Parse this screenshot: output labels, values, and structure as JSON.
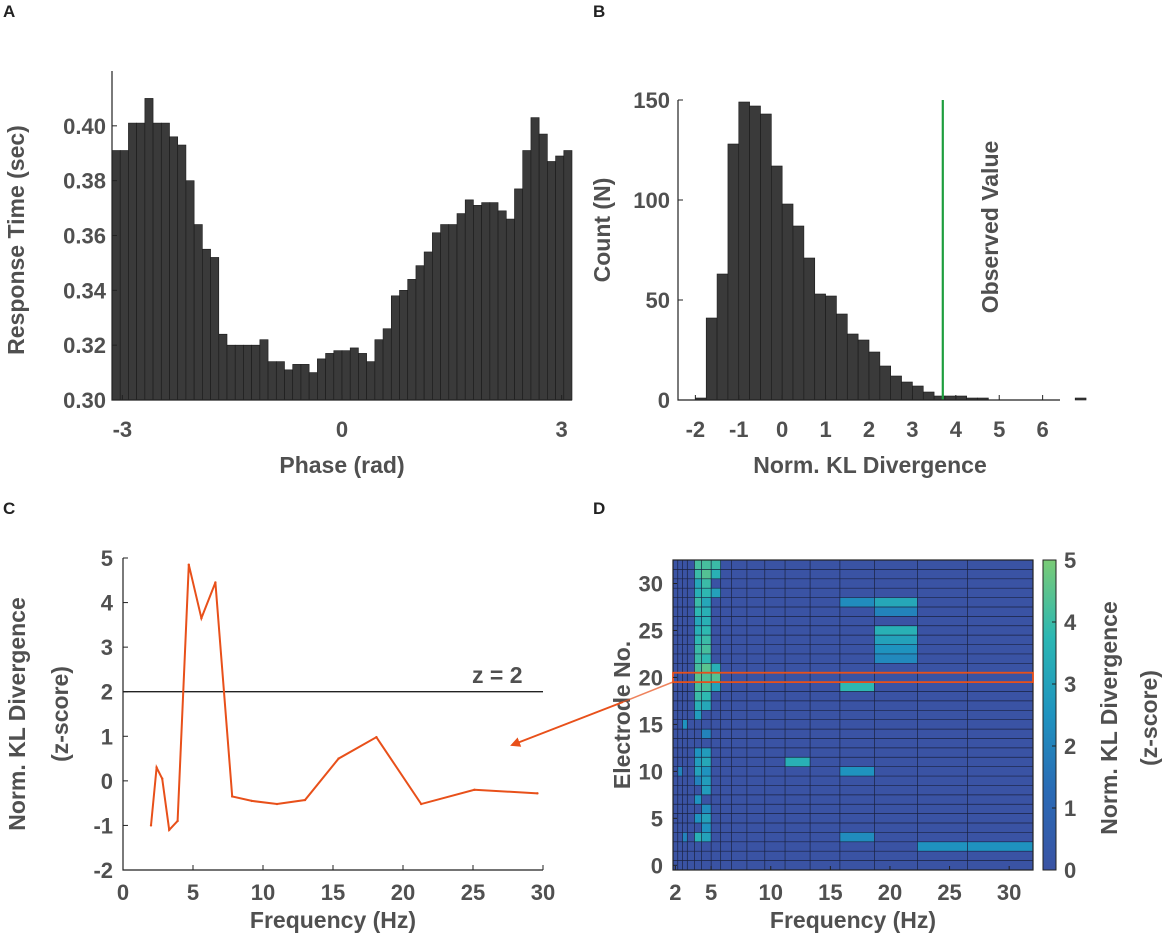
{
  "colors": {
    "bar_fill": "#3a3a3a",
    "bar_edge": "#1a1a1a",
    "observed_line": "#1e9e3e",
    "orange": "#e8501a",
    "threshold_line": "#222222",
    "text": "#505050",
    "heatmap_low": "#3a53a4",
    "heatmap_mid": "#2bb7b3",
    "heatmap_high": "#7acb76"
  },
  "chart_data": [
    {
      "id": "A",
      "panel_label": "A",
      "type": "bar",
      "xlabel": "Phase (rad)",
      "ylabel": "Response Time (sec)",
      "xlim": [
        -3.1416,
        3.1416
      ],
      "ylim": [
        0.3,
        0.42
      ],
      "xticks": [
        -3,
        0,
        3
      ],
      "xtick_labels": [
        "-3",
        "0",
        "3"
      ],
      "yticks": [
        0.3,
        0.32,
        0.34,
        0.36,
        0.38,
        0.4
      ],
      "ytick_labels": [
        "0.30",
        "0.32",
        "0.34",
        "0.36",
        "0.38",
        "0.40"
      ],
      "values": [
        0.391,
        0.391,
        0.401,
        0.401,
        0.41,
        0.401,
        0.401,
        0.396,
        0.393,
        0.38,
        0.364,
        0.355,
        0.352,
        0.324,
        0.32,
        0.32,
        0.32,
        0.32,
        0.322,
        0.314,
        0.314,
        0.311,
        0.313,
        0.313,
        0.31,
        0.315,
        0.317,
        0.318,
        0.318,
        0.319,
        0.317,
        0.314,
        0.322,
        0.326,
        0.338,
        0.34,
        0.344,
        0.349,
        0.354,
        0.361,
        0.364,
        0.364,
        0.368,
        0.373,
        0.371,
        0.372,
        0.372,
        0.369,
        0.366,
        0.377,
        0.391,
        0.403,
        0.397,
        0.387,
        0.389,
        0.391
      ]
    },
    {
      "id": "B",
      "panel_label": "B",
      "type": "bar",
      "xlabel": "Norm. KL Divergence",
      "ylabel": "Count (N)",
      "xlim": [
        -2.4,
        6.4
      ],
      "ylim": [
        0,
        150
      ],
      "xticks": [
        -2,
        -1,
        0,
        1,
        2,
        3,
        4,
        5,
        6
      ],
      "xtick_labels": [
        "-2",
        "-1",
        "0",
        "1",
        "2",
        "3",
        "4",
        "5",
        "6"
      ],
      "yticks": [
        0,
        50,
        100,
        150
      ],
      "ytick_labels": [
        "0",
        "50",
        "100",
        "150"
      ],
      "bin_start": -2.0,
      "bin_width": 0.25,
      "values": [
        1,
        41,
        63,
        128,
        149,
        147,
        143,
        117,
        98,
        87,
        71,
        53,
        52,
        43,
        33,
        30,
        24,
        17,
        12,
        9,
        7,
        4,
        2,
        2,
        2,
        1,
        1,
        0,
        0,
        0,
        0,
        0,
        0,
        0,
        0,
        1
      ],
      "observed_value": 3.7,
      "annotation": "Observed Value"
    },
    {
      "id": "C",
      "panel_label": "C",
      "type": "line",
      "xlabel": "Frequency (Hz)",
      "ylabel": "Norm. KL Divergence",
      "ylabel2": "(z-score)",
      "xlim": [
        0,
        30
      ],
      "ylim": [
        -2,
        5
      ],
      "xticks": [
        0,
        5,
        10,
        15,
        20,
        25,
        30
      ],
      "xtick_labels": [
        "0",
        "5",
        "10",
        "15",
        "20",
        "25",
        "30"
      ],
      "yticks": [
        -2,
        -1,
        0,
        1,
        2,
        3,
        4,
        5
      ],
      "ytick_labels": [
        "-2",
        "-1",
        "0",
        "1",
        "2",
        "3",
        "4",
        "5"
      ],
      "x": [
        2,
        2.4,
        2.8,
        3.3,
        3.9,
        4.7,
        5.6,
        6.6,
        7.8,
        9.2,
        11,
        13,
        15.4,
        18.1,
        21.3,
        25.1,
        29.6
      ],
      "y": [
        -1.0,
        0.3,
        0.05,
        -1.1,
        -0.9,
        4.85,
        3.65,
        4.45,
        -0.35,
        -0.45,
        -0.52,
        -0.43,
        0.5,
        0.98,
        -0.52,
        -0.2,
        -0.28
      ],
      "threshold": 2,
      "threshold_label": "z = 2"
    },
    {
      "id": "D",
      "panel_label": "D",
      "type": "heatmap",
      "xlabel": "Frequency (Hz)",
      "ylabel": "Electrode No.",
      "colorbar_label": "Norm. KL Divergence",
      "colorbar_label2": "(z-score)",
      "xticks": [
        2,
        5,
        10,
        15,
        20,
        25,
        30
      ],
      "xtick_labels": [
        "2",
        "5",
        "10",
        "15",
        "20",
        "25",
        "30"
      ],
      "yticks": [
        0,
        5,
        10,
        15,
        20,
        25,
        30
      ],
      "ytick_labels": [
        "0",
        "5",
        "10",
        "15",
        "20",
        "25",
        "30"
      ],
      "colorbar_ticks": [
        0,
        1,
        2,
        3,
        4,
        5
      ],
      "colorbar_tick_labels": [
        "0",
        "1",
        "2",
        "3",
        "4",
        "5"
      ],
      "clim": [
        0,
        5
      ],
      "freq_edges": [
        1.8,
        2.2,
        2.6,
        3.0,
        3.6,
        4.2,
        5.0,
        5.8,
        6.7,
        8.0,
        9.5,
        11.2,
        13.3,
        15.8,
        18.7,
        22.3,
        26.5,
        32.0
      ],
      "n_electrodes": 33,
      "highlight_electrode": 20,
      "hot_cells": [
        {
          "e": 2,
          "f": 15,
          "v": 2.5
        },
        {
          "e": 2,
          "f": 16,
          "v": 2.5
        },
        {
          "e": 3,
          "f": 2,
          "v": 2.0
        },
        {
          "e": 3,
          "f": 4,
          "v": 3.5
        },
        {
          "e": 3,
          "f": 5,
          "v": 3.0
        },
        {
          "e": 3,
          "f": 13,
          "v": 2.3
        },
        {
          "e": 4,
          "f": 5,
          "v": 2.5
        },
        {
          "e": 5,
          "f": 4,
          "v": 2.5
        },
        {
          "e": 5,
          "f": 5,
          "v": 3.0
        },
        {
          "e": 6,
          "f": 5,
          "v": 2.3
        },
        {
          "e": 7,
          "f": 4,
          "v": 2.5
        },
        {
          "e": 8,
          "f": 5,
          "v": 2.8
        },
        {
          "e": 9,
          "f": 4,
          "v": 2.0
        },
        {
          "e": 9,
          "f": 5,
          "v": 2.8
        },
        {
          "e": 10,
          "f": 1,
          "v": 2.0
        },
        {
          "e": 10,
          "f": 4,
          "v": 3.0
        },
        {
          "e": 10,
          "f": 5,
          "v": 2.5
        },
        {
          "e": 10,
          "f": 13,
          "v": 2.5
        },
        {
          "e": 11,
          "f": 4,
          "v": 2.8
        },
        {
          "e": 11,
          "f": 5,
          "v": 3.2
        },
        {
          "e": 11,
          "f": 11,
          "v": 3.5
        },
        {
          "e": 12,
          "f": 4,
          "v": 2.5
        },
        {
          "e": 12,
          "f": 5,
          "v": 2.8
        },
        {
          "e": 14,
          "f": 5,
          "v": 2.0
        },
        {
          "e": 15,
          "f": 2,
          "v": 2.5
        },
        {
          "e": 16,
          "f": 4,
          "v": 2.8
        },
        {
          "e": 17,
          "f": 4,
          "v": 3.5
        },
        {
          "e": 17,
          "f": 5,
          "v": 3.2
        },
        {
          "e": 18,
          "f": 4,
          "v": 4.0
        },
        {
          "e": 18,
          "f": 5,
          "v": 3.8
        },
        {
          "e": 19,
          "f": 4,
          "v": 4.2
        },
        {
          "e": 19,
          "f": 5,
          "v": 4.2
        },
        {
          "e": 19,
          "f": 6,
          "v": 3.0
        },
        {
          "e": 19,
          "f": 13,
          "v": 3.8
        },
        {
          "e": 20,
          "f": 4,
          "v": 4.5
        },
        {
          "e": 20,
          "f": 5,
          "v": 4.3
        },
        {
          "e": 20,
          "f": 6,
          "v": 4.4
        },
        {
          "e": 21,
          "f": 4,
          "v": 4.2
        },
        {
          "e": 21,
          "f": 5,
          "v": 4.5
        },
        {
          "e": 21,
          "f": 6,
          "v": 3.5
        },
        {
          "e": 22,
          "f": 4,
          "v": 4.0
        },
        {
          "e": 22,
          "f": 5,
          "v": 3.8
        },
        {
          "e": 22,
          "f": 14,
          "v": 2.2
        },
        {
          "e": 23,
          "f": 4,
          "v": 4.0
        },
        {
          "e": 23,
          "f": 5,
          "v": 4.2
        },
        {
          "e": 23,
          "f": 14,
          "v": 2.5
        },
        {
          "e": 24,
          "f": 4,
          "v": 3.8
        },
        {
          "e": 24,
          "f": 5,
          "v": 4.0
        },
        {
          "e": 24,
          "f": 14,
          "v": 3.0
        },
        {
          "e": 25,
          "f": 4,
          "v": 3.5
        },
        {
          "e": 25,
          "f": 5,
          "v": 3.8
        },
        {
          "e": 25,
          "f": 14,
          "v": 3.5
        },
        {
          "e": 26,
          "f": 4,
          "v": 3.2
        },
        {
          "e": 26,
          "f": 5,
          "v": 3.5
        },
        {
          "e": 27,
          "f": 4,
          "v": 3.8
        },
        {
          "e": 27,
          "f": 5,
          "v": 3.5
        },
        {
          "e": 27,
          "f": 14,
          "v": 2.0
        },
        {
          "e": 28,
          "f": 4,
          "v": 4.0
        },
        {
          "e": 28,
          "f": 5,
          "v": 3.2
        },
        {
          "e": 28,
          "f": 13,
          "v": 2.3
        },
        {
          "e": 28,
          "f": 14,
          "v": 3.2
        },
        {
          "e": 29,
          "f": 4,
          "v": 3.5
        },
        {
          "e": 29,
          "f": 5,
          "v": 3.8
        },
        {
          "e": 29,
          "f": 6,
          "v": 3.0
        },
        {
          "e": 30,
          "f": 4,
          "v": 3.2
        },
        {
          "e": 30,
          "f": 5,
          "v": 4.0
        },
        {
          "e": 31,
          "f": 4,
          "v": 4.0
        },
        {
          "e": 31,
          "f": 5,
          "v": 4.4
        },
        {
          "e": 31,
          "f": 6,
          "v": 3.5
        },
        {
          "e": 32,
          "f": 4,
          "v": 4.2
        },
        {
          "e": 32,
          "f": 5,
          "v": 4.2
        },
        {
          "e": 32,
          "f": 6,
          "v": 4.0
        }
      ]
    }
  ]
}
